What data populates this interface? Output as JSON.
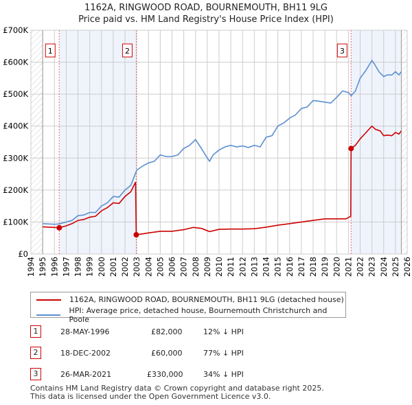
{
  "chart_data": {
    "type": "line",
    "title": "1162A, RINGWOOD ROAD, BOURNEMOUTH, BH11 9LG",
    "subtitle": "Price paid vs. HM Land Registry's House Price Index (HPI)",
    "xlim": [
      1994,
      2026
    ],
    "ylim": [
      0,
      700000
    ],
    "x_ticks": [
      "1994",
      "1995",
      "1996",
      "1997",
      "1998",
      "1999",
      "2000",
      "2001",
      "2002",
      "2003",
      "2004",
      "2005",
      "2006",
      "2007",
      "2008",
      "2009",
      "2010",
      "2011",
      "2012",
      "2013",
      "2014",
      "2015",
      "2016",
      "2017",
      "2018",
      "2019",
      "2020",
      "2021",
      "2022",
      "2023",
      "2024",
      "2025",
      "2026"
    ],
    "y_ticks": [
      {
        "v": 0,
        "label": "£0"
      },
      {
        "v": 100000,
        "label": "£100K"
      },
      {
        "v": 200000,
        "label": "£200K"
      },
      {
        "v": 300000,
        "label": "£300K"
      },
      {
        "v": 400000,
        "label": "£400K"
      },
      {
        "v": 500000,
        "label": "£500K"
      },
      {
        "v": 600000,
        "label": "£600K"
      },
      {
        "v": 700000,
        "label": "£700K"
      }
    ],
    "grid": true,
    "series": [
      {
        "name": "1162A, RINGWOOD ROAD, BOURNEMOUTH, BH11 9LG (detached house)",
        "color": "#cc0000",
        "x": [
          1995,
          1995.5,
          1996,
          1996.41,
          1997,
          1997.5,
          1998,
          1998.5,
          1999,
          1999.5,
          2000,
          2000.5,
          2001,
          2001.5,
          2002,
          2002.5,
          2002.9,
          2002.96,
          2003.5,
          2004,
          2005,
          2006,
          2007,
          2007.8,
          2008.5,
          2009.2,
          2010,
          2011,
          2012,
          2013,
          2014,
          2015,
          2016,
          2017,
          2018,
          2019,
          2020,
          2020.8,
          2021.2,
          2021.23,
          2021.6,
          2022,
          2022.5,
          2023,
          2023.3,
          2023.7,
          2024,
          2024.3,
          2024.7,
          2025,
          2025.3,
          2025.5
        ],
        "y": [
          85000,
          84000,
          83000,
          82000,
          88000,
          95000,
          105000,
          108000,
          115000,
          118000,
          135000,
          145000,
          160000,
          158000,
          180000,
          195000,
          225000,
          60000,
          63000,
          66000,
          71000,
          71000,
          76000,
          83000,
          80000,
          70000,
          77000,
          78000,
          78000,
          79000,
          84000,
          90000,
          95000,
          100000,
          105000,
          110000,
          110000,
          110000,
          118000,
          330000,
          340000,
          360000,
          380000,
          400000,
          390000,
          385000,
          370000,
          372000,
          370000,
          380000,
          375000,
          385000
        ]
      },
      {
        "name": "HPI: Average price, detached house, Bournemouth Christchurch and Poole",
        "color": "#5b8fd0",
        "x": [
          1995,
          1996,
          1996.41,
          1997,
          1997.5,
          1998,
          1998.5,
          1999,
          1999.5,
          2000,
          2000.5,
          2001,
          2001.5,
          2002,
          2002.5,
          2003,
          2003.5,
          2004,
          2004.5,
          2005,
          2005.5,
          2006,
          2006.5,
          2007,
          2007.5,
          2008,
          2008.5,
          2009,
          2009.2,
          2009.5,
          2010,
          2010.5,
          2011,
          2011.5,
          2012,
          2012.5,
          2013,
          2013.5,
          2014,
          2014.5,
          2015,
          2015.5,
          2016,
          2016.5,
          2017,
          2017.5,
          2018,
          2018.5,
          2019,
          2019.5,
          2020,
          2020.5,
          2021,
          2021.23,
          2021.6,
          2022,
          2022.5,
          2023,
          2023.2,
          2023.6,
          2024,
          2024.3,
          2024.7,
          2025,
          2025.3,
          2025.5
        ],
        "y": [
          95000,
          93000,
          94000,
          100000,
          105000,
          120000,
          122000,
          130000,
          130000,
          150000,
          160000,
          180000,
          178000,
          200000,
          215000,
          262000,
          275000,
          285000,
          290000,
          310000,
          305000,
          305000,
          310000,
          330000,
          340000,
          358000,
          330000,
          300000,
          290000,
          310000,
          325000,
          335000,
          340000,
          335000,
          338000,
          333000,
          340000,
          335000,
          365000,
          370000,
          400000,
          410000,
          425000,
          435000,
          455000,
          460000,
          480000,
          478000,
          475000,
          472000,
          490000,
          510000,
          505000,
          495000,
          510000,
          550000,
          575000,
          605000,
          595000,
          570000,
          555000,
          560000,
          560000,
          570000,
          560000,
          570000
        ]
      }
    ],
    "sales": [
      {
        "n": "1",
        "x": 1996.41,
        "y": 82000
      },
      {
        "n": "2",
        "x": 2002.96,
        "y": 60000
      },
      {
        "n": "3",
        "x": 2021.23,
        "y": 330000
      }
    ],
    "shaded": [
      [
        1996.41,
        2002.96
      ],
      [
        2021.23,
        2025.5
      ]
    ],
    "hatched": [
      [
        1994,
        1995
      ],
      [
        2025.5,
        2026
      ]
    ],
    "legend": "below"
  },
  "legend": {
    "red": "1162A, RINGWOOD ROAD, BOURNEMOUTH, BH11 9LG (detached house)",
    "blue": "HPI: Average price, detached house, Bournemouth Christchurch and Poole"
  },
  "table": [
    {
      "n": "1",
      "date": "28-MAY-1996",
      "price": "£82,000",
      "hpi": "12% ↓ HPI"
    },
    {
      "n": "2",
      "date": "18-DEC-2002",
      "price": "£60,000",
      "hpi": "77% ↓ HPI"
    },
    {
      "n": "3",
      "date": "26-MAR-2021",
      "price": "£330,000",
      "hpi": "34% ↓ HPI"
    }
  ],
  "footer": [
    "Contains HM Land Registry data © Crown copyright and database right 2025.",
    "This data is licensed under the Open Government Licence v3.0."
  ]
}
